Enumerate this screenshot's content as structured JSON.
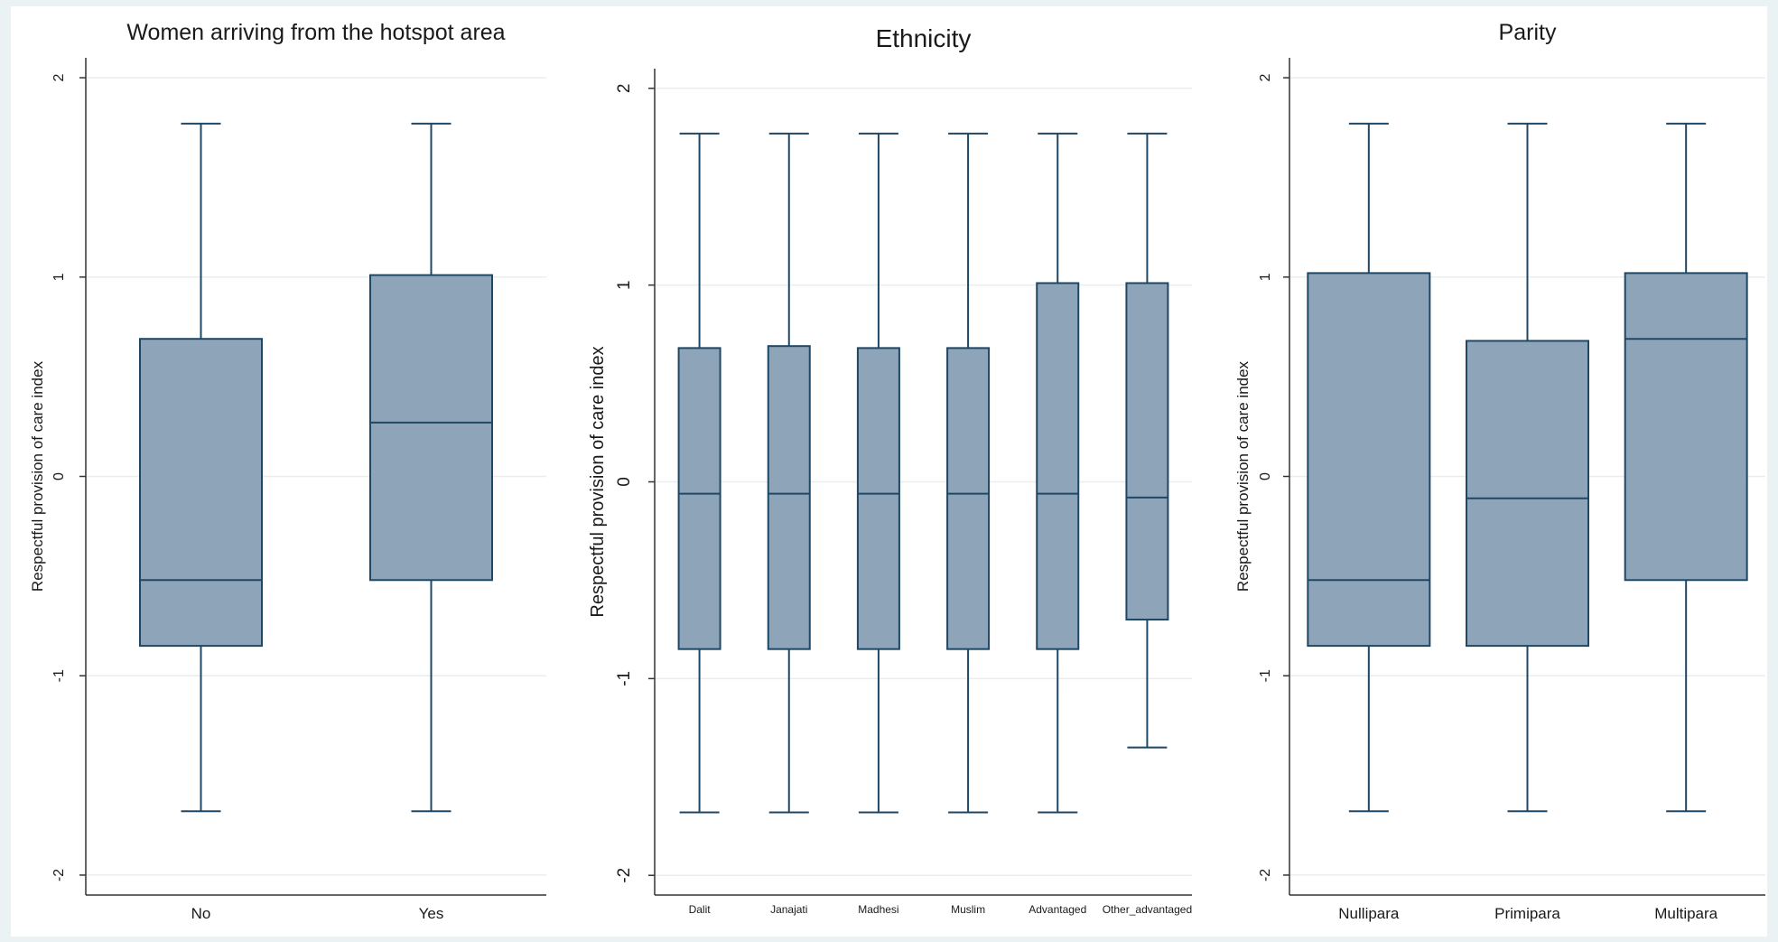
{
  "colors": {
    "background": "#eaf2f3",
    "plot_bg": "#ffffff",
    "box_fill": "#8ea4b8",
    "box_stroke": "#1f4766",
    "grid": "#e8eef0",
    "axis": "#333333"
  },
  "chart_data": [
    {
      "type": "box",
      "title": "Women arriving from the hotspot area",
      "ylabel": "Respectful provision of care index",
      "ylim": [
        -2.1,
        2.1
      ],
      "yticks": [
        -2,
        -1,
        0,
        1,
        2
      ],
      "categories": [
        "No",
        "Yes"
      ],
      "boxes": [
        {
          "category": "No",
          "whisker_low": -1.68,
          "q1": -0.85,
          "median": -0.52,
          "q3": 0.69,
          "whisker_high": 1.77
        },
        {
          "category": "Yes",
          "whisker_low": -1.68,
          "q1": -0.52,
          "median": 0.27,
          "q3": 1.01,
          "whisker_high": 1.77
        }
      ]
    },
    {
      "type": "box",
      "title": "Ethnicity",
      "ylabel": "Respectful provision of care index",
      "ylim": [
        -2.1,
        2.1
      ],
      "yticks": [
        -2,
        -1,
        0,
        1,
        2
      ],
      "categories": [
        "Dalit",
        "Janajati",
        "Madhesi",
        "Muslim",
        "Advantaged",
        "Other_advantaged"
      ],
      "boxes": [
        {
          "category": "Dalit",
          "whisker_low": -1.68,
          "q1": -0.85,
          "median": -0.06,
          "q3": 0.68,
          "whisker_high": 1.77
        },
        {
          "category": "Janajati",
          "whisker_low": -1.68,
          "q1": -0.85,
          "median": -0.06,
          "q3": 0.69,
          "whisker_high": 1.77
        },
        {
          "category": "Madhesi",
          "whisker_low": -1.68,
          "q1": -0.85,
          "median": -0.06,
          "q3": 0.68,
          "whisker_high": 1.77
        },
        {
          "category": "Muslim",
          "whisker_low": -1.68,
          "q1": -0.85,
          "median": -0.06,
          "q3": 0.68,
          "whisker_high": 1.77
        },
        {
          "category": "Advantaged",
          "whisker_low": -1.68,
          "q1": -0.85,
          "median": -0.06,
          "q3": 1.01,
          "whisker_high": 1.77
        },
        {
          "category": "Other_advantaged",
          "whisker_low": -1.35,
          "q1": -0.7,
          "median": -0.08,
          "q3": 1.01,
          "whisker_high": 1.77
        }
      ]
    },
    {
      "type": "box",
      "title": "Parity",
      "ylabel": "Respectful provision of care index",
      "ylim": [
        -2.1,
        2.1
      ],
      "yticks": [
        -2,
        -1,
        0,
        1,
        2
      ],
      "categories": [
        "Nullipara",
        "Primipara",
        "Multipara"
      ],
      "boxes": [
        {
          "category": "Nullipara",
          "whisker_low": -1.68,
          "q1": -0.85,
          "median": -0.52,
          "q3": 1.02,
          "whisker_high": 1.77
        },
        {
          "category": "Primipara",
          "whisker_low": -1.68,
          "q1": -0.85,
          "median": -0.11,
          "q3": 0.68,
          "whisker_high": 1.77
        },
        {
          "category": "Multipara",
          "whisker_low": -1.68,
          "q1": -0.52,
          "median": 0.69,
          "q3": 1.02,
          "whisker_high": 1.77
        }
      ]
    }
  ]
}
